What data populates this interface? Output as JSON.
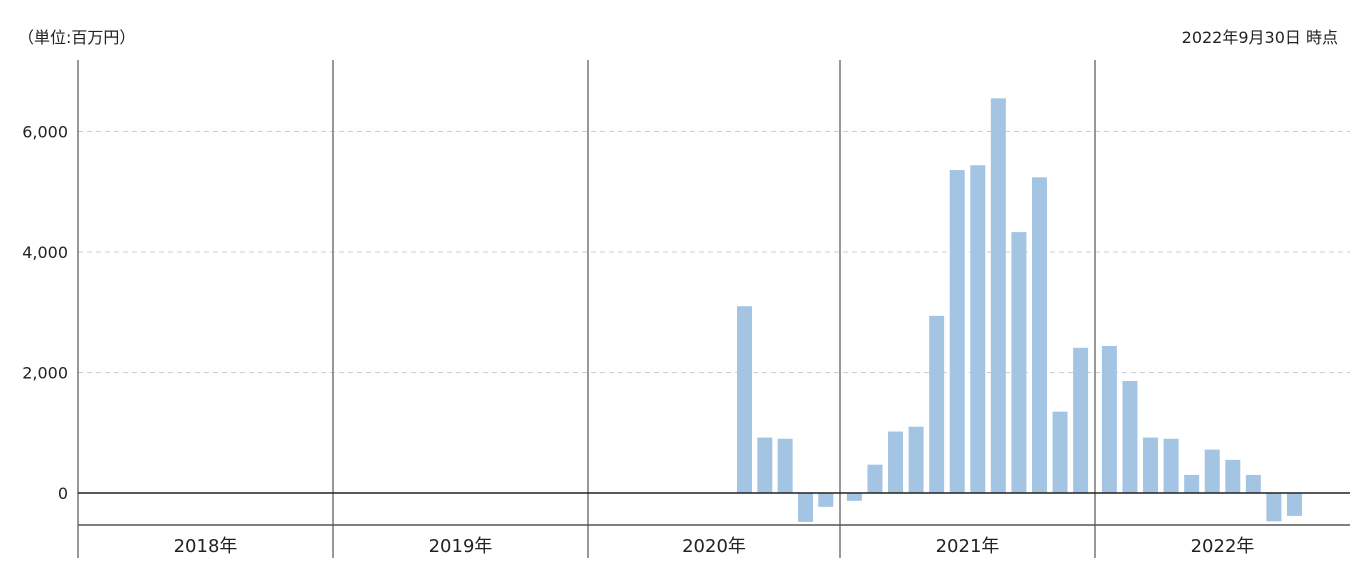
{
  "header": {
    "unit": "（単位:百万円）",
    "as_of": "2022年9月30日 時点"
  },
  "colors": {
    "bar": "#a4c4e3",
    "year_divider": "#777777",
    "zero_line": "#222222",
    "grid": "#cccccc"
  },
  "chart_data": {
    "type": "bar",
    "title": "",
    "xlabel": "",
    "ylabel": "",
    "ylim": [
      -550,
      7100
    ],
    "yticks": [
      0,
      2000,
      4000,
      6000
    ],
    "ytick_labels": [
      "0",
      "2,000",
      "4,000",
      "6,000"
    ],
    "grid": true,
    "legend": "none",
    "years": [
      "2018年",
      "2019年",
      "2020年",
      "2021年",
      "2022年"
    ],
    "series": [
      {
        "values": [
          null,
          null,
          null,
          null,
          null,
          null,
          null,
          null,
          null,
          null,
          null,
          null,
          null,
          null,
          null,
          null,
          null,
          null,
          null,
          null,
          null,
          null,
          null,
          null,
          null,
          null,
          null,
          null,
          null,
          null,
          null,
          3100,
          920,
          900,
          -480,
          -230,
          -130,
          470,
          1020,
          1100,
          2940,
          5360,
          5440,
          6550,
          4330,
          5240,
          1350,
          2410,
          2440,
          1860,
          920,
          900,
          300,
          720,
          550,
          300,
          -470,
          -380
        ]
      }
    ]
  }
}
